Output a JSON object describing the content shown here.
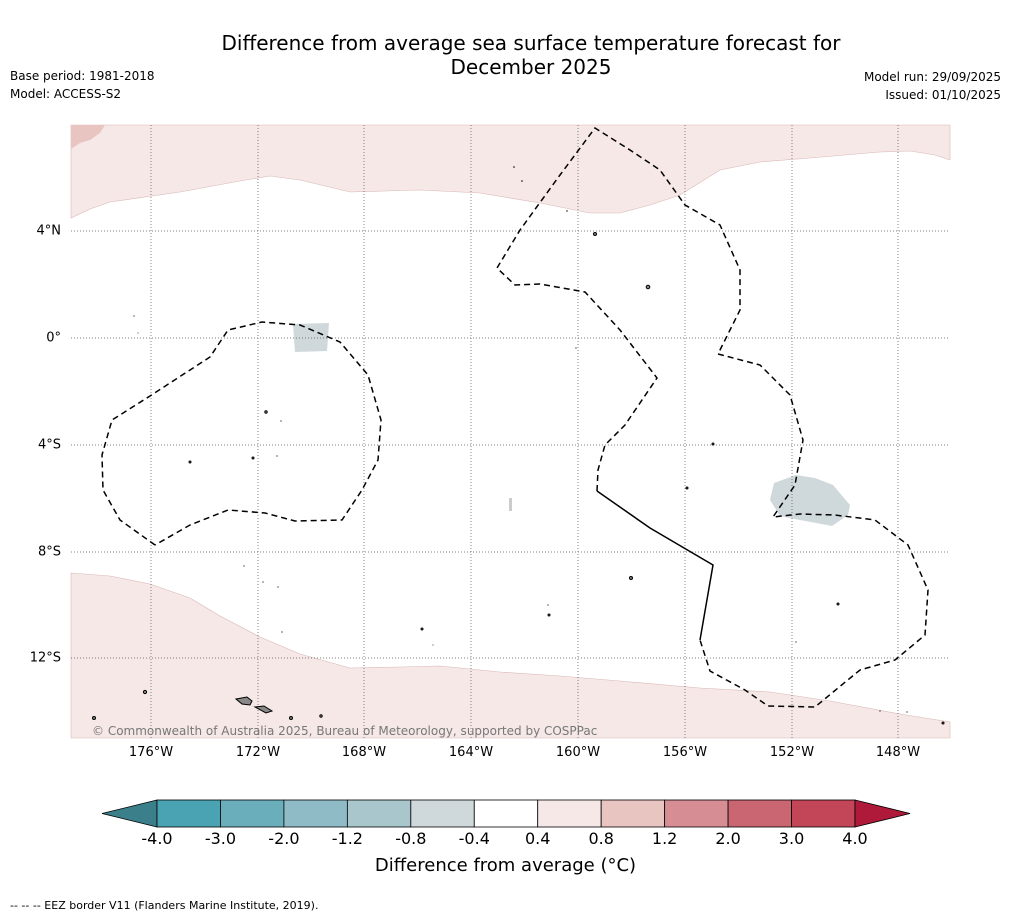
{
  "title_line1": "Difference from average sea surface temperature forecast for",
  "title_line2": "December 2025",
  "base_period": "Base period: 1981-2018",
  "model": "Model: ACCESS-S2",
  "model_run": "Model run: 29/09/2025",
  "issued": "Issued: 01/10/2025",
  "copyright": "© Commonwealth of Australia 2025, Bureau of Meteorology, supported by COSPPac",
  "lon_labels": [
    "176°W",
    "172°W",
    "168°W",
    "164°W",
    "160°W",
    "156°W",
    "152°W",
    "148°W"
  ],
  "lat_labels": [
    "4°N",
    "0°",
    "4°S",
    "8°S",
    "12°S"
  ],
  "colorbar": {
    "title": "Difference from average (°C)",
    "tick_labels": [
      "-4.0",
      "-3.0",
      "-2.0",
      "-1.2",
      "-0.8",
      "-0.4",
      "0.4",
      "0.8",
      "1.2",
      "2.0",
      "3.0",
      "4.0"
    ],
    "colors": [
      "#4aa3b3",
      "#6aaebb",
      "#8ebbc6",
      "#a9c6cc",
      "#cfd8db",
      "#ffffff",
      "#f5e8e7",
      "#e8c5c1",
      "#d68d93",
      "#c96672",
      "#c24657"
    ],
    "under_color": "#3a7f8a",
    "over_color": "#b01a3a"
  },
  "footnote": "-- -- -- EEZ border V11 (Flanders Marine Institute, 2019).",
  "land_color": "#888888",
  "warm_anomaly_color": "#f5e8e7",
  "cool_anomaly_color": "#cfd8db"
}
